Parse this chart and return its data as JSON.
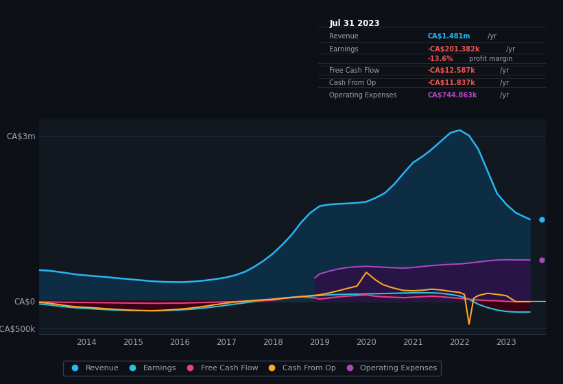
{
  "bg_color": "#0d1117",
  "chart_bg": "#111820",
  "text_color": "#9ca3af",
  "ylim": [
    -600000,
    3300000
  ],
  "xlim": [
    2013.0,
    2023.85
  ],
  "ytick_vals": [
    -500000,
    0,
    3000000
  ],
  "ytick_labels": [
    "-CA$500k",
    "CA$0",
    "CA$3m"
  ],
  "xtick_vals": [
    2014,
    2015,
    2016,
    2017,
    2018,
    2019,
    2020,
    2021,
    2022,
    2023
  ],
  "xticklabels": [
    "2014",
    "2015",
    "2016",
    "2017",
    "2018",
    "2019",
    "2020",
    "2021",
    "2022",
    "2023"
  ],
  "legend_items": [
    "Revenue",
    "Earnings",
    "Free Cash Flow",
    "Cash From Op",
    "Operating Expenses"
  ],
  "legend_colors": [
    "#29b6f6",
    "#26c6da",
    "#ec407a",
    "#ffa726",
    "#ab47bc"
  ],
  "tooltip": {
    "date": "Jul 31 2023",
    "rows": [
      {
        "label": "Revenue",
        "value": "CA$1.481m",
        "suffix": " /yr",
        "value_color": "#29b6f6",
        "indent": false
      },
      {
        "label": "Earnings",
        "value": "-CA$201.382k",
        "suffix": " /yr",
        "value_color": "#ef5350",
        "indent": false
      },
      {
        "label": "",
        "value": "-13.6%",
        "suffix": " profit margin",
        "value_color": "#ef5350",
        "indent": true
      },
      {
        "label": "Free Cash Flow",
        "value": "-CA$12.587k",
        "suffix": " /yr",
        "value_color": "#ef5350",
        "indent": false
      },
      {
        "label": "Cash From Op",
        "value": "-CA$11.837k",
        "suffix": " /yr",
        "value_color": "#ef5350",
        "indent": false
      },
      {
        "label": "Operating Expenses",
        "value": "CA$744.863k",
        "suffix": " /yr",
        "value_color": "#ab47bc",
        "indent": false
      }
    ]
  },
  "revenue": {
    "color": "#29b6f6",
    "fill_color": "#0d2d45",
    "linewidth": 1.8,
    "x": [
      2013.0,
      2013.2,
      2013.4,
      2013.6,
      2013.8,
      2014.0,
      2014.2,
      2014.4,
      2014.6,
      2014.8,
      2015.0,
      2015.2,
      2015.4,
      2015.6,
      2015.8,
      2016.0,
      2016.2,
      2016.4,
      2016.6,
      2016.8,
      2017.0,
      2017.2,
      2017.4,
      2017.6,
      2017.8,
      2018.0,
      2018.2,
      2018.4,
      2018.6,
      2018.8,
      2019.0,
      2019.2,
      2019.4,
      2019.6,
      2019.8,
      2020.0,
      2020.2,
      2020.4,
      2020.6,
      2020.8,
      2021.0,
      2021.2,
      2021.4,
      2021.6,
      2021.8,
      2022.0,
      2022.2,
      2022.4,
      2022.6,
      2022.8,
      2023.0,
      2023.2,
      2023.5
    ],
    "y": [
      560000,
      550000,
      530000,
      505000,
      480000,
      465000,
      450000,
      438000,
      420000,
      405000,
      390000,
      375000,
      360000,
      350000,
      345000,
      342000,
      348000,
      360000,
      378000,
      400000,
      428000,
      470000,
      530000,
      620000,
      730000,
      860000,
      1020000,
      1200000,
      1420000,
      1600000,
      1720000,
      1750000,
      1760000,
      1770000,
      1780000,
      1800000,
      1870000,
      1960000,
      2120000,
      2320000,
      2510000,
      2620000,
      2750000,
      2900000,
      3050000,
      3100000,
      3000000,
      2750000,
      2350000,
      1950000,
      1750000,
      1600000,
      1481000
    ]
  },
  "earnings": {
    "color": "#26c6da",
    "fill_color": "#3d0012",
    "linewidth": 1.5,
    "x": [
      2013.0,
      2013.2,
      2013.4,
      2013.6,
      2013.8,
      2014.0,
      2014.2,
      2014.4,
      2014.6,
      2014.8,
      2015.0,
      2015.2,
      2015.4,
      2015.6,
      2015.8,
      2016.0,
      2016.2,
      2016.4,
      2016.6,
      2016.8,
      2017.0,
      2017.2,
      2017.4,
      2017.6,
      2017.8,
      2018.0,
      2018.2,
      2018.4,
      2018.6,
      2018.8,
      2019.0,
      2019.2,
      2019.4,
      2019.6,
      2019.8,
      2020.0,
      2020.2,
      2020.4,
      2020.6,
      2020.8,
      2021.0,
      2021.2,
      2021.4,
      2021.6,
      2021.8,
      2022.0,
      2022.2,
      2022.4,
      2022.6,
      2022.8,
      2023.0,
      2023.2,
      2023.5
    ],
    "y": [
      -55000,
      -70000,
      -90000,
      -110000,
      -125000,
      -135000,
      -145000,
      -155000,
      -163000,
      -168000,
      -172000,
      -175000,
      -178000,
      -176000,
      -170000,
      -162000,
      -152000,
      -138000,
      -120000,
      -100000,
      -78000,
      -55000,
      -32000,
      -10000,
      12000,
      32000,
      52000,
      68000,
      80000,
      90000,
      100000,
      110000,
      118000,
      122000,
      125000,
      128000,
      132000,
      136000,
      140000,
      145000,
      148000,
      150000,
      148000,
      140000,
      118000,
      90000,
      30000,
      -60000,
      -120000,
      -165000,
      -190000,
      -200000,
      -201382
    ]
  },
  "free_cash_flow": {
    "color": "#ec407a",
    "linewidth": 1.5,
    "x": [
      2013.0,
      2013.5,
      2014.0,
      2014.5,
      2015.0,
      2015.5,
      2016.0,
      2016.5,
      2017.0,
      2017.5,
      2018.0,
      2018.3,
      2018.6,
      2018.9,
      2019.0,
      2019.2,
      2019.4,
      2019.6,
      2019.8,
      2020.0,
      2020.2,
      2020.4,
      2020.6,
      2020.8,
      2021.0,
      2021.2,
      2021.4,
      2021.6,
      2021.8,
      2022.0,
      2022.2,
      2022.4,
      2022.6,
      2022.8,
      2023.0,
      2023.2,
      2023.5
    ],
    "y": [
      -15000,
      -22000,
      -28000,
      -32000,
      -38000,
      -42000,
      -38000,
      -28000,
      -15000,
      -5000,
      15000,
      55000,
      75000,
      55000,
      35000,
      55000,
      75000,
      90000,
      100000,
      110000,
      85000,
      75000,
      68000,
      60000,
      70000,
      78000,
      88000,
      78000,
      62000,
      48000,
      32000,
      18000,
      8000,
      5000,
      -8000,
      -12587,
      -12587
    ]
  },
  "cash_from_op": {
    "color": "#ffa726",
    "linewidth": 1.5,
    "x": [
      2013.0,
      2013.2,
      2013.4,
      2013.6,
      2013.8,
      2014.0,
      2014.2,
      2014.4,
      2014.6,
      2014.8,
      2015.0,
      2015.2,
      2015.4,
      2015.6,
      2015.8,
      2016.0,
      2016.2,
      2016.4,
      2016.6,
      2016.8,
      2017.0,
      2017.2,
      2017.4,
      2017.6,
      2017.8,
      2018.0,
      2018.2,
      2018.4,
      2018.6,
      2018.8,
      2019.0,
      2019.2,
      2019.4,
      2019.6,
      2019.8,
      2020.0,
      2020.2,
      2020.35,
      2020.5,
      2020.65,
      2020.8,
      2021.0,
      2021.2,
      2021.4,
      2021.6,
      2021.8,
      2022.0,
      2022.1,
      2022.2,
      2022.3,
      2022.4,
      2022.6,
      2022.8,
      2023.0,
      2023.2,
      2023.5
    ],
    "y": [
      -25000,
      -40000,
      -62000,
      -88000,
      -105000,
      -115000,
      -125000,
      -138000,
      -150000,
      -160000,
      -168000,
      -172000,
      -175000,
      -170000,
      -160000,
      -148000,
      -132000,
      -112000,
      -88000,
      -62000,
      -38000,
      -18000,
      -2000,
      10000,
      22000,
      32000,
      48000,
      62000,
      78000,
      95000,
      112000,
      145000,
      185000,
      230000,
      270000,
      520000,
      380000,
      300000,
      255000,
      220000,
      192000,
      185000,
      195000,
      215000,
      200000,
      175000,
      155000,
      120000,
      -420000,
      50000,
      100000,
      140000,
      120000,
      95000,
      -11837,
      -11837
    ]
  },
  "op_expenses": {
    "color": "#ab47bc",
    "fill_color": "#2d1045",
    "linewidth": 1.5,
    "x": [
      2018.9,
      2019.0,
      2019.2,
      2019.4,
      2019.6,
      2019.8,
      2020.0,
      2020.2,
      2020.4,
      2020.6,
      2020.8,
      2021.0,
      2021.2,
      2021.4,
      2021.6,
      2021.8,
      2022.0,
      2022.2,
      2022.4,
      2022.6,
      2022.8,
      2023.0,
      2023.2,
      2023.5
    ],
    "y": [
      420000,
      490000,
      540000,
      580000,
      608000,
      622000,
      628000,
      620000,
      610000,
      602000,
      596000,
      608000,
      625000,
      642000,
      655000,
      665000,
      672000,
      688000,
      708000,
      728000,
      742000,
      748000,
      744863,
      744863
    ]
  }
}
